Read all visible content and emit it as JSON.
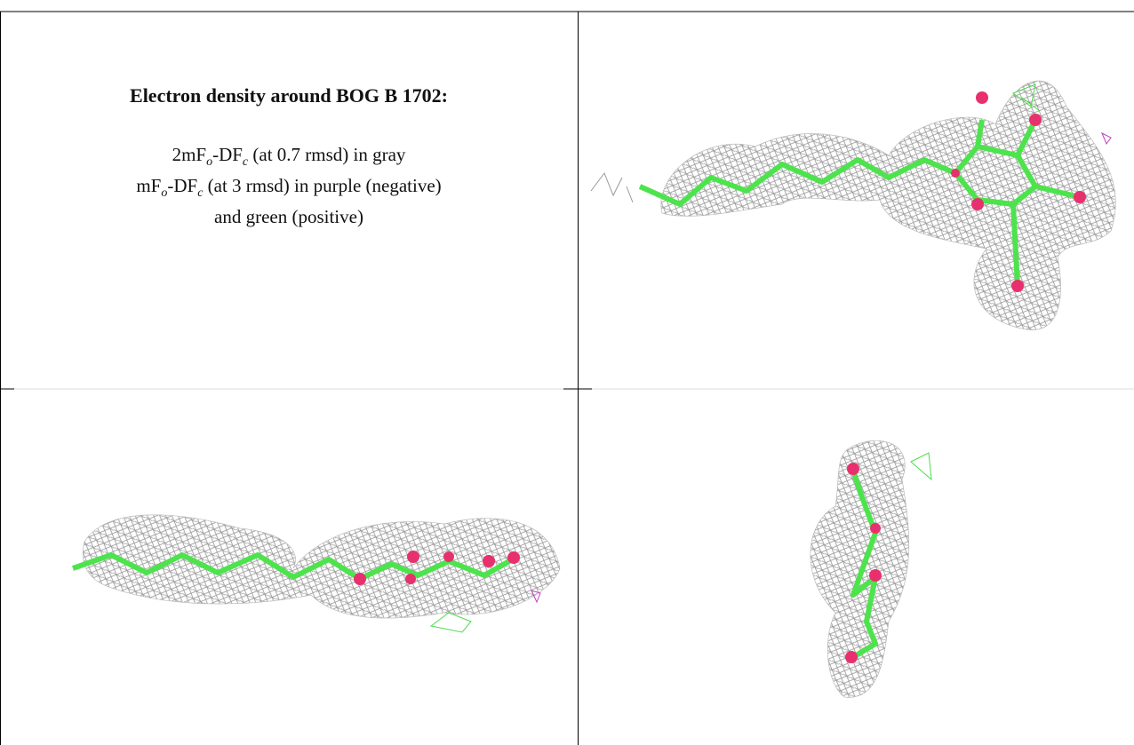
{
  "caption": {
    "title": "Electron density around BOG B 1702:",
    "lines": [
      [
        "2mF",
        "o",
        "-DF",
        "c",
        " (at 0.7 rmsd) in gray"
      ],
      [
        "mF",
        "o",
        "-DF",
        "c",
        " (at 3 rmsd) in purple (negative)"
      ],
      [
        "and green (positive)"
      ]
    ]
  }
}
